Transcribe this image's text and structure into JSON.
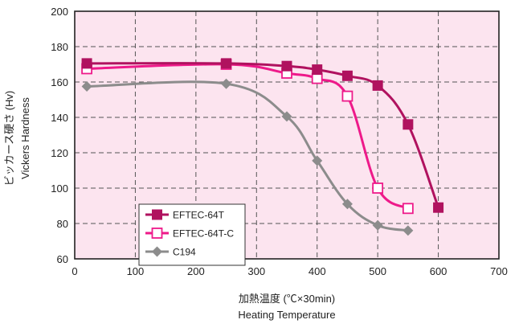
{
  "chart_data": {
    "type": "line",
    "xlabel_ja": "加熱温度 (℃×30min)",
    "xlabel_en": "Heating Temperature",
    "ylabel_ja": "ビッカース硬さ (Hv)",
    "ylabel_en": "Vickers Hardness",
    "xlim": [
      0,
      700
    ],
    "ylim": [
      60,
      200
    ],
    "xticks": [
      0,
      100,
      200,
      300,
      400,
      500,
      600,
      700
    ],
    "yticks": [
      60,
      80,
      100,
      120,
      140,
      160,
      180,
      200
    ],
    "grid": true,
    "legend_position": "lower-left",
    "colors": {
      "background": "#fce4ef",
      "grid": "#555555",
      "axes": "#222222"
    },
    "series": [
      {
        "name": "EFTEC-64T",
        "color": "#b0125f",
        "marker": "filled-square",
        "x": [
          20,
          250,
          350,
          400,
          450,
          500,
          550,
          600
        ],
        "y": [
          170.5,
          170.5,
          169,
          167,
          163.5,
          158,
          136,
          89
        ]
      },
      {
        "name": "EFTEC-64T-C",
        "color": "#ee1a8a",
        "marker": "open-square",
        "x": [
          20,
          250,
          350,
          400,
          450,
          500,
          550
        ],
        "y": [
          167.5,
          170,
          165,
          162,
          152,
          100,
          88.5
        ]
      },
      {
        "name": "C194",
        "color": "#8c8c8c",
        "marker": "filled-diamond",
        "x": [
          20,
          250,
          350,
          400,
          450,
          500,
          550
        ],
        "y": [
          157.5,
          159,
          140.5,
          115.5,
          91,
          79,
          76
        ]
      }
    ]
  }
}
